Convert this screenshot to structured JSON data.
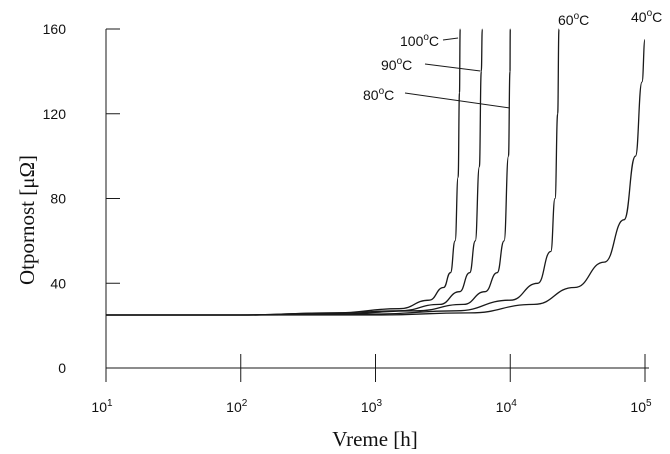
{
  "chart_data": {
    "type": "line",
    "xlabel": "Vreme [h]",
    "ylabel": "Otpornost [μΩ]",
    "xscale": "log",
    "xlim": [
      10,
      100000
    ],
    "ylim": [
      0,
      160
    ],
    "xticks": [
      {
        "value": 10,
        "base": "10",
        "exp": "1"
      },
      {
        "value": 100,
        "base": "10",
        "exp": "2"
      },
      {
        "value": 1000,
        "base": "10",
        "exp": "3"
      },
      {
        "value": 10000,
        "base": "10",
        "exp": "4"
      },
      {
        "value": 100000,
        "base": "10",
        "exp": "5"
      }
    ],
    "yticks": [
      0,
      40,
      80,
      120,
      160
    ],
    "grid": false,
    "series": [
      {
        "name": "100°C",
        "label": {
          "main": "100",
          "sup": "o",
          "unit": "C"
        },
        "x": [
          10,
          100,
          500,
          1500,
          2500,
          3200,
          3600,
          3900,
          4100,
          4200,
          4250
        ],
        "y": [
          25,
          25,
          26,
          28,
          32,
          38,
          45,
          60,
          90,
          130,
          160
        ]
      },
      {
        "name": "90°C",
        "label": {
          "main": "90",
          "sup": "o",
          "unit": "C"
        },
        "x": [
          10,
          100,
          500,
          1500,
          3000,
          4200,
          5000,
          5500,
          5900,
          6100,
          6200
        ],
        "y": [
          25,
          25,
          26,
          27,
          30,
          36,
          45,
          60,
          95,
          140,
          160
        ]
      },
      {
        "name": "80°C",
        "label": {
          "main": "80",
          "sup": "o",
          "unit": "C"
        },
        "x": [
          10,
          100,
          500,
          2000,
          4500,
          6500,
          8000,
          9000,
          9700,
          9950,
          10000
        ],
        "y": [
          25,
          25,
          25.5,
          27,
          30,
          36,
          45,
          60,
          100,
          140,
          160
        ]
      },
      {
        "name": "60°C",
        "label": {
          "main": "60",
          "sup": "o",
          "unit": "C"
        },
        "x": [
          10,
          100,
          1000,
          4000,
          10000,
          16000,
          20000,
          21500,
          22500,
          23000
        ],
        "y": [
          25,
          25,
          25.5,
          27,
          32,
          40,
          55,
          80,
          120,
          160
        ]
      },
      {
        "name": "40°C",
        "label": {
          "main": "40",
          "sup": "o",
          "unit": "C"
        },
        "x": [
          10,
          100,
          1000,
          5000,
          15000,
          30000,
          50000,
          70000,
          85000,
          95000,
          100000
        ],
        "y": [
          25,
          25,
          25,
          26,
          30,
          38,
          50,
          70,
          100,
          135,
          155
        ]
      }
    ]
  }
}
